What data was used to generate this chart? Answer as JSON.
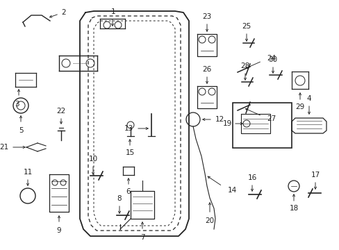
{
  "bg_color": "#ffffff",
  "line_color": "#222222",
  "fig_width": 4.89,
  "fig_height": 3.6,
  "dpi": 100,
  "imgW": 489,
  "imgH": 360
}
